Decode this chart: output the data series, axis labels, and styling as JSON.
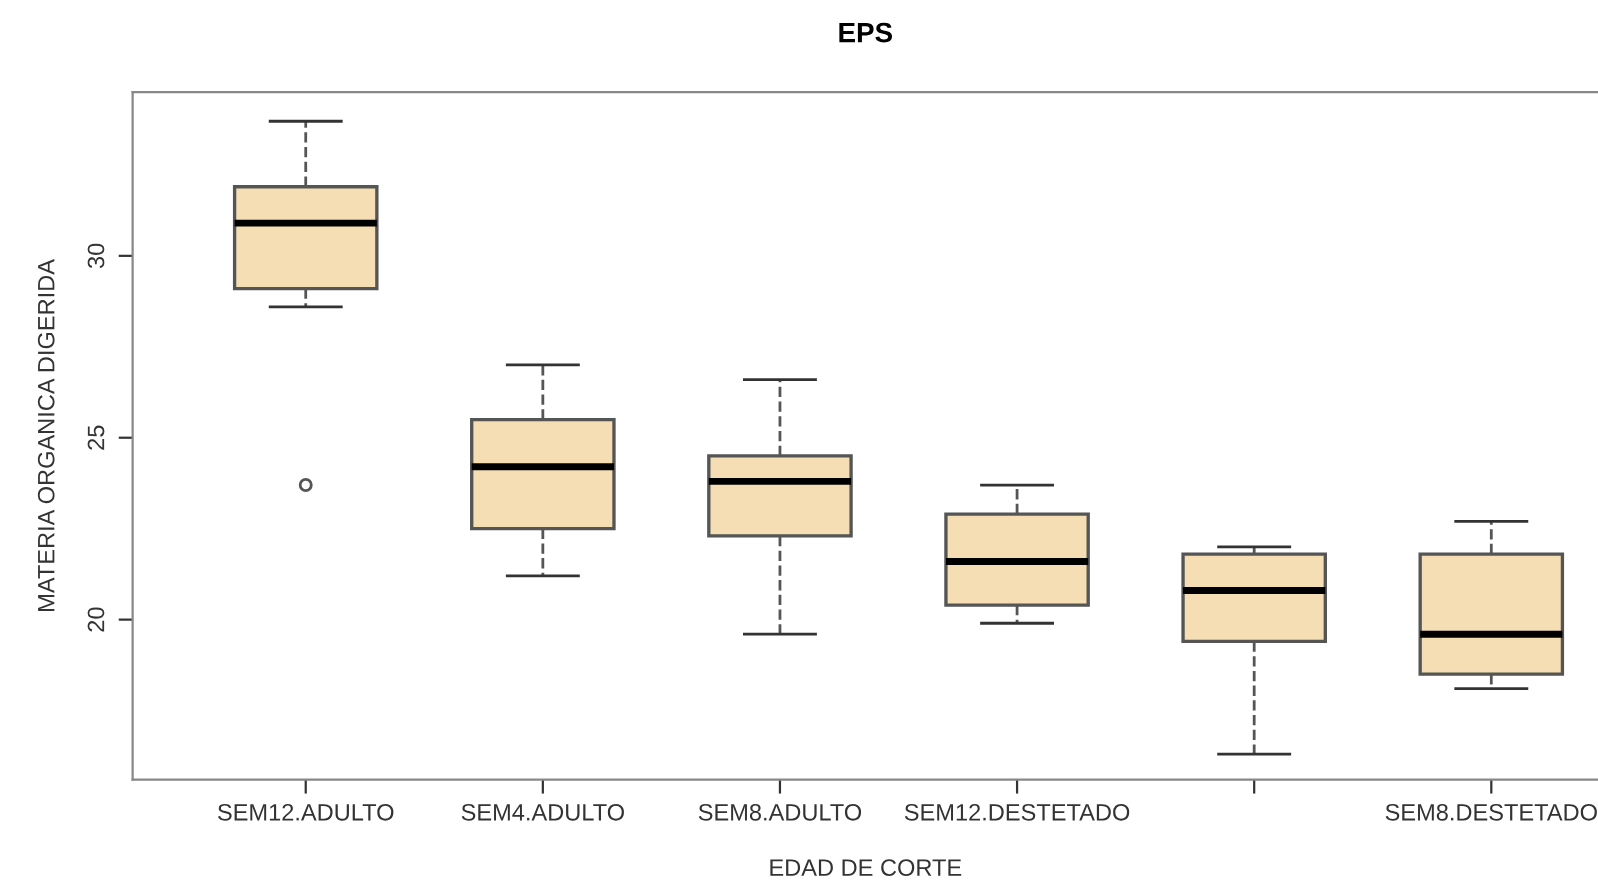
{
  "chart_data": {
    "type": "box",
    "title": "EPS",
    "xlabel": "EDAD DE CORTE",
    "ylabel": "MATERIA ORGANICA DIGERIDA",
    "categories": [
      "SEM12.ADULTO",
      "SEM4.ADULTO",
      "SEM8.ADULTO",
      "SEM12.DESTETADO",
      null,
      "SEM8.DESTETADO"
    ],
    "color": "#f5deb3",
    "ylim": [
      15.6,
      34.5
    ],
    "yticks": [
      20,
      25,
      30
    ],
    "grid": false,
    "line_style": "dashed",
    "boxes": [
      {
        "low": 28.6,
        "q1": 29.1,
        "median": 30.9,
        "q3": 31.9,
        "high": 33.7,
        "outliers": [
          23.7
        ]
      },
      {
        "low": 21.2,
        "q1": 22.5,
        "median": 24.2,
        "q3": 25.5,
        "high": 27.0
      },
      {
        "low": 19.6,
        "q1": 22.3,
        "median": 23.8,
        "q3": 24.5,
        "high": 26.6
      },
      {
        "low": 19.9,
        "q1": 20.4,
        "median": 21.6,
        "q3": 22.9,
        "high": 23.7
      },
      {
        "low": 16.3,
        "q1": 19.4,
        "median": 20.8,
        "q3": 21.8,
        "high": 22.0
      },
      {
        "low": 18.1,
        "q1": 18.5,
        "median": 19.6,
        "q3": 21.8,
        "high": 22.7
      }
    ]
  }
}
